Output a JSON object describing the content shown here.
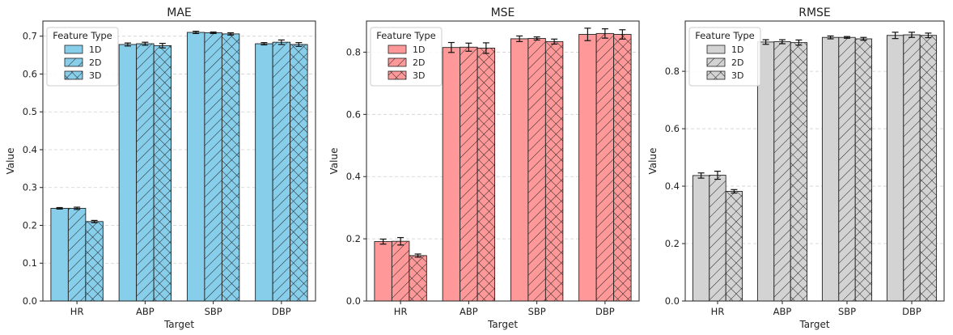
{
  "chart_data": [
    {
      "type": "bar",
      "title": "MAE",
      "xlabel": "Target",
      "ylabel": "Value",
      "color": "#87CEEB",
      "categories": [
        "HR",
        "ABP",
        "SBP",
        "DBP"
      ],
      "ylim": [
        0,
        0.74
      ],
      "yticks": [
        0.0,
        0.1,
        0.2,
        0.3,
        0.4,
        0.5,
        0.6,
        0.7
      ],
      "ytick_labels": [
        "0.0",
        "0.1",
        "0.2",
        "0.3",
        "0.4",
        "0.5",
        "0.6",
        "0.7"
      ],
      "legend_title": "Feature Type",
      "legend_position": "top-left",
      "grid": "y, dashed",
      "series": [
        {
          "name": "1D",
          "hatch": "none",
          "values": [
            0.245,
            0.678,
            0.71,
            0.68
          ],
          "errors": [
            0.002,
            0.004,
            0.003,
            0.003
          ]
        },
        {
          "name": "2D",
          "hatch": "diagonal",
          "values": [
            0.245,
            0.68,
            0.709,
            0.684
          ],
          "errors": [
            0.003,
            0.004,
            0.002,
            0.006
          ]
        },
        {
          "name": "3D",
          "hatch": "crosshatch",
          "values": [
            0.21,
            0.675,
            0.706,
            0.678
          ],
          "errors": [
            0.003,
            0.006,
            0.003,
            0.005
          ]
        }
      ]
    },
    {
      "type": "bar",
      "title": "MSE",
      "xlabel": "Target",
      "ylabel": "Value",
      "color": "#FF9999",
      "categories": [
        "HR",
        "ABP",
        "SBP",
        "DBP"
      ],
      "ylim": [
        0,
        0.9
      ],
      "yticks": [
        0.0,
        0.2,
        0.4,
        0.6,
        0.8
      ],
      "ytick_labels": [
        "0.0",
        "0.2",
        "0.4",
        "0.6",
        "0.8"
      ],
      "legend_title": "Feature Type",
      "legend_position": "top-left",
      "grid": "y, dashed",
      "series": [
        {
          "name": "1D",
          "hatch": "none",
          "values": [
            0.191,
            0.815,
            0.843,
            0.857
          ],
          "errors": [
            0.008,
            0.016,
            0.009,
            0.02
          ]
        },
        {
          "name": "2D",
          "hatch": "diagonal",
          "values": [
            0.192,
            0.816,
            0.844,
            0.86
          ],
          "errors": [
            0.012,
            0.013,
            0.005,
            0.015
          ]
        },
        {
          "name": "3D",
          "hatch": "crosshatch",
          "values": [
            0.146,
            0.813,
            0.834,
            0.857
          ],
          "errors": [
            0.005,
            0.017,
            0.008,
            0.015
          ]
        }
      ]
    },
    {
      "type": "bar",
      "title": "RMSE",
      "xlabel": "Target",
      "ylabel": "Value",
      "color": "#D3D3D3",
      "categories": [
        "HR",
        "ABP",
        "SBP",
        "DBP"
      ],
      "ylim": [
        0,
        0.975
      ],
      "yticks": [
        0.0,
        0.2,
        0.4,
        0.6,
        0.8
      ],
      "ytick_labels": [
        "0.0",
        "0.2",
        "0.4",
        "0.6",
        "0.8"
      ],
      "legend_title": "Feature Type",
      "legend_position": "top-left",
      "grid": "y, dashed",
      "series": [
        {
          "name": "1D",
          "hatch": "none",
          "values": [
            0.437,
            0.902,
            0.918,
            0.925
          ],
          "errors": [
            0.009,
            0.008,
            0.005,
            0.011
          ]
        },
        {
          "name": "2D",
          "hatch": "diagonal",
          "values": [
            0.438,
            0.903,
            0.918,
            0.927
          ],
          "errors": [
            0.014,
            0.007,
            0.003,
            0.009
          ]
        },
        {
          "name": "3D",
          "hatch": "crosshatch",
          "values": [
            0.382,
            0.9,
            0.913,
            0.925
          ],
          "errors": [
            0.006,
            0.009,
            0.005,
            0.008
          ]
        }
      ]
    }
  ]
}
